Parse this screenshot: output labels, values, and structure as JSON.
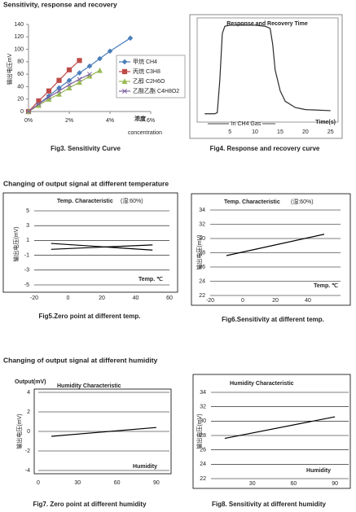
{
  "headings": [
    "Sensitivity, response and recovery",
    "Changing of output signal at different temperature",
    "Changing of output signal at different humidity"
  ],
  "chart_data": [
    {
      "type": "line",
      "caption": "Fig3. Sensitivity Curve",
      "y_label": "输出电压mV",
      "x_label": "浓度",
      "x_label_2": "concentration",
      "xlim": [
        0,
        6
      ],
      "xticks": [
        {
          "value": 0,
          "label": "0%"
        },
        {
          "value": 2,
          "label": "2%"
        },
        {
          "value": 4,
          "label": "4%"
        },
        {
          "value": 6,
          "label": "6%"
        }
      ],
      "ylim": [
        0,
        140
      ],
      "yticks": [
        0,
        20,
        40,
        60,
        80,
        100,
        120,
        140
      ],
      "grid": false,
      "legend": "right",
      "series": [
        {
          "name": "甲烷 CH4",
          "color": "#4a7ebb",
          "marker": "diamond",
          "x": [
            0,
            0.5,
            1,
            1.5,
            2,
            2.5,
            3,
            3.5,
            4,
            5
          ],
          "values": [
            0,
            12,
            25,
            38,
            50,
            62,
            73,
            85,
            97,
            118
          ]
        },
        {
          "name": "丙烷 C3H8",
          "color": "#be4b48",
          "marker": "square",
          "x": [
            0,
            0.5,
            1,
            1.5,
            2,
            2.5
          ],
          "values": [
            0,
            17,
            33,
            50,
            67,
            82
          ]
        },
        {
          "name": "乙醇 C2H6O",
          "color": "#98b954",
          "marker": "triangle",
          "x": [
            0,
            0.5,
            1,
            1.5,
            2,
            2.5,
            3,
            3.5
          ],
          "values": [
            0,
            10,
            20,
            28,
            38,
            47,
            57,
            66
          ]
        },
        {
          "name": "乙酸乙酯 C4H8O2",
          "color": "#7d60a0",
          "marker": "x",
          "x": [
            0,
            0.5,
            1,
            1.5,
            2,
            2.5,
            3
          ],
          "values": [
            0,
            12,
            23,
            33,
            43,
            52,
            60
          ]
        }
      ]
    },
    {
      "type": "line",
      "caption": "Fig4. Response and recovery curve",
      "title": "Response and Recovery Time",
      "annotation": "In CH4 Gas",
      "x_label": "Time(s)",
      "xlim": [
        -1.5,
        26.5
      ],
      "xticks": [
        5,
        10,
        15,
        20,
        25
      ],
      "ylim": [
        0,
        100
      ],
      "grid": false,
      "series": [
        {
          "color": "#2a2a2a",
          "x": [
            0,
            2,
            2.5,
            3,
            3.5,
            4,
            5,
            10,
            12,
            13,
            13.5,
            14,
            15,
            16,
            18,
            20,
            25
          ],
          "values": [
            8,
            8,
            9,
            40,
            85,
            92,
            93,
            93,
            92,
            90,
            75,
            50,
            30,
            20,
            14,
            12,
            11
          ]
        }
      ]
    },
    {
      "type": "line",
      "caption": "Fig5.Zero point at different temp.",
      "title": "Temp. Characteristic",
      "subtitle": "(湿:60%)",
      "x_label": "Temp. ℃",
      "y_label": "输出电压(mV)",
      "xlim": [
        -20,
        60
      ],
      "xticks": [
        -20,
        0,
        20,
        40,
        60
      ],
      "ylim": [
        -5,
        5
      ],
      "yticks": [
        5,
        3,
        1,
        -1,
        -3,
        -5
      ],
      "grid": true,
      "series": [
        {
          "color": "#000000",
          "x": [
            -10,
            50
          ],
          "values": [
            0.6,
            -0.3
          ]
        },
        {
          "color": "#000000",
          "x": [
            -10,
            50
          ],
          "values": [
            -0.2,
            0.4
          ]
        }
      ]
    },
    {
      "type": "line",
      "caption": "Fig6.Sensitivity at different temp.",
      "title": "Temp. Characteristic",
      "subtitle": "(湿:60%)",
      "x_label": "Temp. ℃",
      "y_label": "输出电压(mV)",
      "xlim": [
        -20,
        60
      ],
      "xticks": [
        -20,
        0,
        20,
        40
      ],
      "ylim": [
        22,
        34
      ],
      "yticks": [
        22,
        24,
        26,
        28,
        30,
        32,
        34
      ],
      "grid": true,
      "series": [
        {
          "color": "#000000",
          "x": [
            -10,
            50
          ],
          "values": [
            27.6,
            30.6
          ]
        }
      ]
    },
    {
      "type": "line",
      "caption": "Fig7. Zero point at different humidity",
      "title": "Humidity Characteristic",
      "y_title": "Output(mV)",
      "x_label": "Humidity",
      "y_label": "输出电压(mV)",
      "xlim": [
        0,
        100
      ],
      "xticks": [
        0,
        30,
        60,
        90
      ],
      "ylim": [
        -4,
        4
      ],
      "yticks": [
        4,
        2,
        0,
        -2,
        -4
      ],
      "grid": true,
      "series": [
        {
          "color": "#000000",
          "x": [
            10,
            90
          ],
          "values": [
            -0.5,
            0.4
          ]
        }
      ]
    },
    {
      "type": "line",
      "caption": "Fig8. Sensitivity at different humidity",
      "title": "Humidity Characteristic",
      "x_label": "Humidity",
      "y_label": "输出电压(mV)",
      "xlim": [
        0,
        100
      ],
      "xticks": [
        30,
        60,
        90
      ],
      "ylim": [
        22,
        34
      ],
      "yticks": [
        22,
        24,
        26,
        28,
        30,
        32,
        34
      ],
      "grid": true,
      "series": [
        {
          "color": "#000000",
          "x": [
            10,
            90
          ],
          "values": [
            27.6,
            30.6
          ]
        }
      ]
    }
  ]
}
